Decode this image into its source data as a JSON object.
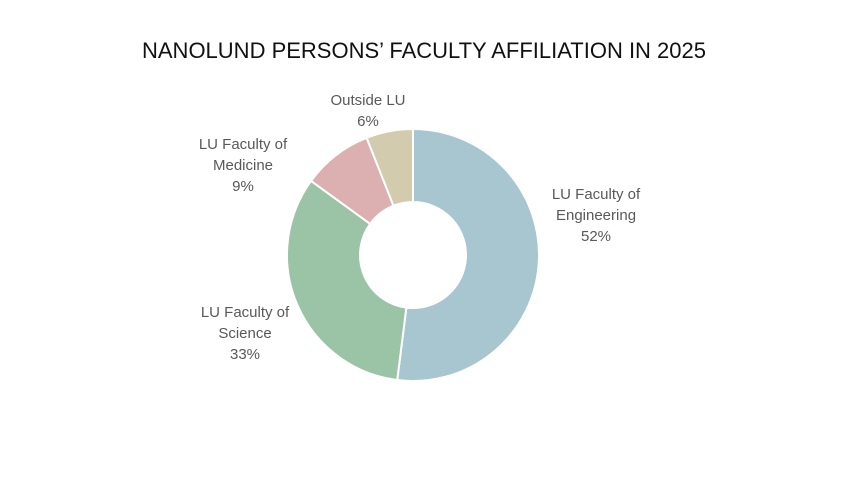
{
  "chart_data": {
    "type": "donut",
    "title": "NANOLUND PERSONS’ FACULTY AFFILIATION IN 2025",
    "categories": [
      "LU Faculty of Engineering",
      "LU Faculty of Science",
      "LU Faculty of Medicine",
      "Outside LU"
    ],
    "values": [
      52,
      33,
      9,
      6
    ],
    "value_labels": [
      "52%",
      "33%",
      "9%",
      "6%"
    ],
    "colors": [
      "#a8c6d0",
      "#9bc3a6",
      "#dcafb0",
      "#d3cbae"
    ]
  }
}
